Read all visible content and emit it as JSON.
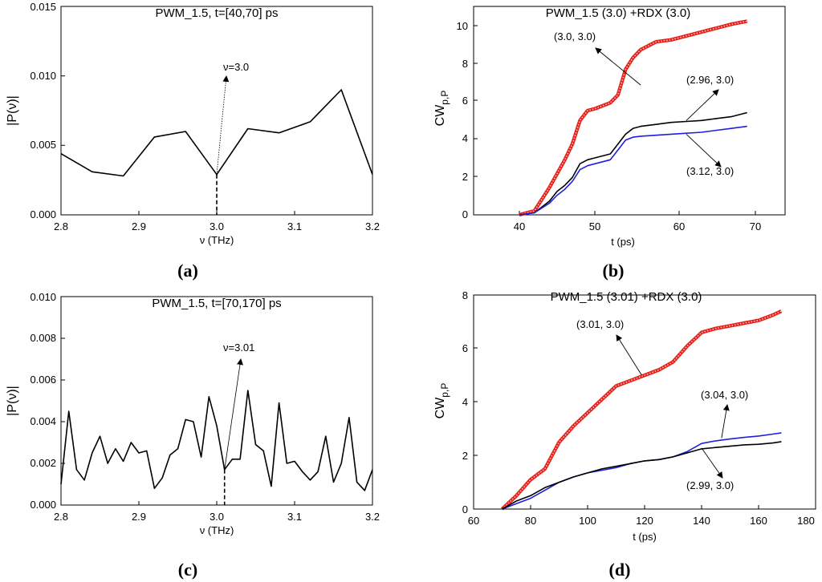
{
  "chart_data": [
    {
      "id": "a",
      "type": "line",
      "panel_label": "(a)",
      "title": "PWM_1.5, t=[40,70] ps",
      "xlabel": "ν (THz)",
      "ylabel": "|P(ν)|",
      "xlim": [
        2.8,
        3.2
      ],
      "ylim": [
        0,
        0.015
      ],
      "xticks": [
        "2.8",
        "2.9",
        "3.0",
        "3.1",
        "3.2"
      ],
      "yticks": [
        "0.000",
        "0.005",
        "0.010",
        "0.015"
      ],
      "series": [
        {
          "name": "|P(ν)|",
          "color": "#000000",
          "x": [
            2.8,
            2.84,
            2.88,
            2.92,
            2.96,
            3.0,
            3.04,
            3.08,
            3.12,
            3.16,
            3.2
          ],
          "y": [
            0.0044,
            0.0031,
            0.0028,
            0.0056,
            0.006,
            0.0029,
            0.0062,
            0.0059,
            0.0067,
            0.009,
            0.0029
          ]
        }
      ],
      "annotation": {
        "text": "ν=3.0",
        "x": 3.0,
        "y": 0.0029
      }
    },
    {
      "id": "b",
      "type": "line",
      "panel_label": "(b)",
      "title": "PWM_1.5 (3.0)  +RDX (3.0)",
      "xlabel": "t (ps)",
      "ylabel": "CW",
      "ylabel_sub": "p,P",
      "xlim": [
        34,
        75
      ],
      "ylim": [
        0,
        10.6
      ],
      "xticks": [
        "40",
        "50",
        "60",
        "70"
      ],
      "yticks": [
        "0",
        "2",
        "4",
        "6",
        "8",
        "10"
      ],
      "series": [
        {
          "name": "(3.0, 3.0)",
          "color": "#e8201a",
          "x": [
            40,
            42,
            44,
            46,
            47,
            48,
            49,
            50,
            52,
            53,
            54,
            55,
            56,
            58,
            60,
            62,
            64,
            66,
            68,
            70
          ],
          "y": [
            0,
            0.2,
            1.4,
            2.8,
            3.6,
            4.8,
            5.3,
            5.4,
            5.7,
            6.1,
            7.4,
            8.0,
            8.4,
            8.8,
            8.9,
            9.1,
            9.3,
            9.5,
            9.7,
            9.85
          ]
        },
        {
          "name": "(2.96, 3.0)",
          "color": "#000000",
          "x": [
            40,
            42,
            44,
            45,
            46,
            47,
            48,
            49,
            50,
            52,
            53,
            54,
            55,
            56,
            58,
            60,
            62,
            64,
            66,
            68,
            70
          ],
          "y": [
            0,
            0.1,
            0.7,
            1.2,
            1.5,
            1.9,
            2.6,
            2.8,
            2.9,
            3.1,
            3.6,
            4.1,
            4.4,
            4.5,
            4.6,
            4.7,
            4.75,
            4.8,
            4.9,
            5.0,
            5.2
          ]
        },
        {
          "name": "(3.12, 3.0)",
          "color": "#1f1fdc",
          "x": [
            40,
            42,
            44,
            45,
            46,
            47,
            48,
            49,
            50,
            52,
            53,
            54,
            55,
            56,
            58,
            60,
            62,
            64,
            66,
            68,
            70
          ],
          "y": [
            0,
            0.1,
            0.6,
            1.0,
            1.3,
            1.7,
            2.3,
            2.5,
            2.6,
            2.8,
            3.3,
            3.8,
            3.95,
            4.0,
            4.05,
            4.1,
            4.15,
            4.2,
            4.3,
            4.4,
            4.5
          ]
        }
      ],
      "annotations": [
        {
          "text": "(3.0, 3.0)",
          "x": 56,
          "y": 6.6
        },
        {
          "text": "(2.96, 3.0)",
          "x": 62,
          "y": 4.8
        },
        {
          "text": "(3.12, 3.0)",
          "x": 62,
          "y": 4.1
        }
      ]
    },
    {
      "id": "c",
      "type": "line",
      "panel_label": "(c)",
      "title": "PWM_1.5, t=[70,170] ps",
      "xlabel": "ν (THz)",
      "ylabel": "|P(ν)|",
      "xlim": [
        2.8,
        3.2
      ],
      "ylim": [
        0,
        0.01
      ],
      "xticks": [
        "2.8",
        "2.9",
        "3.0",
        "3.1",
        "3.2"
      ],
      "yticks": [
        "0.000",
        "0.002",
        "0.004",
        "0.006",
        "0.008",
        "0.010"
      ],
      "series": [
        {
          "name": "|P(ν)|",
          "color": "#000000",
          "x": [
            2.8,
            2.81,
            2.82,
            2.83,
            2.84,
            2.85,
            2.86,
            2.87,
            2.88,
            2.89,
            2.9,
            2.91,
            2.92,
            2.93,
            2.94,
            2.95,
            2.96,
            2.97,
            2.98,
            2.99,
            3.0,
            3.01,
            3.02,
            3.03,
            3.04,
            3.05,
            3.06,
            3.07,
            3.08,
            3.09,
            3.1,
            3.11,
            3.12,
            3.13,
            3.14,
            3.15,
            3.16,
            3.17,
            3.18,
            3.19,
            3.2
          ],
          "y": [
            0.001,
            0.0045,
            0.0017,
            0.0012,
            0.0025,
            0.0033,
            0.002,
            0.0027,
            0.0021,
            0.003,
            0.0025,
            0.0026,
            0.0008,
            0.0013,
            0.0024,
            0.0027,
            0.0041,
            0.004,
            0.0023,
            0.0052,
            0.0038,
            0.0017,
            0.0022,
            0.0022,
            0.0055,
            0.0029,
            0.0026,
            0.0009,
            0.0049,
            0.002,
            0.0021,
            0.0016,
            0.0012,
            0.0016,
            0.0033,
            0.0011,
            0.002,
            0.0042,
            0.0011,
            0.0007,
            0.0017
          ]
        }
      ],
      "annotation": {
        "text": "ν=3.01",
        "x": 3.01,
        "y": 0.0017
      }
    },
    {
      "id": "d",
      "type": "line",
      "panel_label": "(d)",
      "title": "PWM_1.5 (3.01)  +RDX (3.0)",
      "xlabel": "t (ps)",
      "ylabel": "CW",
      "ylabel_sub": "p,P",
      "xlim": [
        60,
        180
      ],
      "ylim": [
        0,
        8
      ],
      "xticks": [
        "60",
        "80",
        "100",
        "120",
        "140",
        "160",
        "180"
      ],
      "yticks": [
        "0",
        "2",
        "4",
        "6",
        "8"
      ],
      "series": [
        {
          "name": "(3.01, 3.0)",
          "color": "#e8201a",
          "x": [
            70,
            75,
            80,
            85,
            90,
            95,
            100,
            105,
            110,
            115,
            120,
            125,
            130,
            135,
            140,
            145,
            150,
            155,
            160,
            165,
            168
          ],
          "y": [
            0,
            0.5,
            1.1,
            1.5,
            2.5,
            3.1,
            3.6,
            4.1,
            4.6,
            4.8,
            5.0,
            5.2,
            5.5,
            6.1,
            6.6,
            6.75,
            6.85,
            6.95,
            7.05,
            7.25,
            7.4
          ]
        },
        {
          "name": "(3.04, 3.0)",
          "color": "#1f1fdc",
          "x": [
            70,
            75,
            80,
            85,
            90,
            95,
            100,
            105,
            110,
            115,
            120,
            125,
            130,
            135,
            140,
            145,
            150,
            155,
            160,
            165,
            168
          ],
          "y": [
            0,
            0.2,
            0.4,
            0.7,
            1.0,
            1.2,
            1.35,
            1.45,
            1.55,
            1.7,
            1.8,
            1.85,
            1.95,
            2.15,
            2.45,
            2.55,
            2.62,
            2.68,
            2.73,
            2.8,
            2.85
          ]
        },
        {
          "name": "(2.99, 3.0)",
          "color": "#000000",
          "x": [
            70,
            75,
            80,
            85,
            90,
            95,
            100,
            105,
            110,
            115,
            120,
            125,
            130,
            135,
            140,
            145,
            150,
            155,
            160,
            165,
            168
          ],
          "y": [
            0,
            0.3,
            0.5,
            0.8,
            1.0,
            1.2,
            1.35,
            1.5,
            1.6,
            1.7,
            1.8,
            1.85,
            1.95,
            2.1,
            2.25,
            2.3,
            2.35,
            2.4,
            2.42,
            2.47,
            2.52
          ]
        }
      ],
      "annotations": [
        {
          "text": "(3.01, 3.0)",
          "x": 119,
          "y": 5.0
        },
        {
          "text": "(3.04, 3.0)",
          "x": 147,
          "y": 2.65
        },
        {
          "text": "(2.99, 3.0)",
          "x": 140,
          "y": 2.28
        }
      ]
    }
  ]
}
